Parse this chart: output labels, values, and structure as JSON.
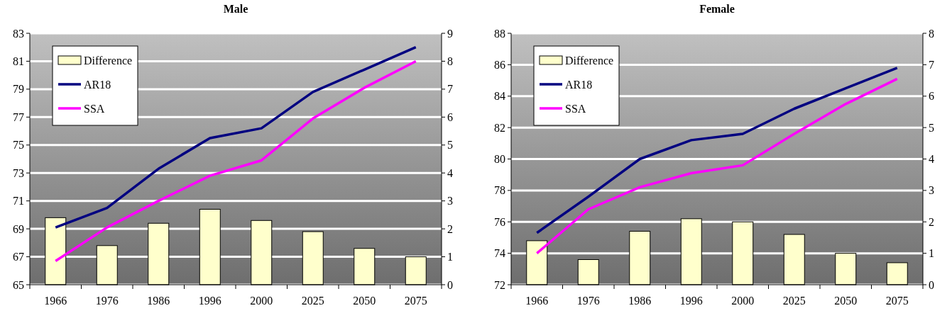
{
  "chart_data": [
    {
      "type": "bar",
      "title": "Male",
      "categories": [
        "1966",
        "1976",
        "1986",
        "1996",
        "2000",
        "2025",
        "2050",
        "2075"
      ],
      "series": [
        {
          "name": "Difference",
          "axis": "y2",
          "color": "#ffffcc",
          "values": [
            2.4,
            1.4,
            2.2,
            2.7,
            2.3,
            1.9,
            1.3,
            1.0
          ]
        },
        {
          "name": "AR18",
          "type": "line",
          "color": "#000080",
          "values": [
            69.1,
            70.5,
            73.3,
            75.5,
            76.2,
            78.8,
            80.4,
            82.0
          ]
        },
        {
          "name": "SSA",
          "type": "line",
          "color": "#ff00ff",
          "values": [
            66.7,
            69.1,
            71.0,
            72.8,
            73.9,
            76.9,
            79.1,
            81.0
          ]
        }
      ],
      "ylim": [
        65,
        83
      ],
      "yticks": [
        65,
        67,
        69,
        71,
        73,
        75,
        77,
        79,
        81,
        83
      ],
      "y2lim": [
        0,
        9
      ],
      "y2ticks": [
        0,
        1,
        2,
        3,
        4,
        5,
        6,
        7,
        8,
        9
      ],
      "grid": "y",
      "legend": "top left",
      "marker": "none"
    },
    {
      "type": "bar",
      "title": "Female",
      "categories": [
        "1966",
        "1976",
        "1986",
        "1996",
        "2000",
        "2025",
        "2050",
        "2075"
      ],
      "series": [
        {
          "name": "Difference",
          "axis": "y2",
          "color": "#ffffcc",
          "values": [
            1.4,
            0.8,
            1.7,
            2.1,
            2.0,
            1.6,
            1.0,
            0.7
          ]
        },
        {
          "name": "AR18",
          "type": "line",
          "color": "#000080",
          "values": [
            75.3,
            77.6,
            80.0,
            81.2,
            81.6,
            83.2,
            84.5,
            85.8
          ]
        },
        {
          "name": "SSA",
          "type": "line",
          "color": "#ff00ff",
          "values": [
            74.0,
            76.8,
            78.2,
            79.1,
            79.6,
            81.6,
            83.5,
            85.1
          ]
        }
      ],
      "ylim": [
        72,
        88
      ],
      "yticks": [
        72,
        74,
        76,
        78,
        80,
        82,
        84,
        86,
        88
      ],
      "y2lim": [
        0,
        8
      ],
      "y2ticks": [
        0,
        1,
        2,
        3,
        4,
        5,
        6,
        7,
        8
      ],
      "grid": "y",
      "legend": "top left",
      "marker": "none"
    }
  ]
}
